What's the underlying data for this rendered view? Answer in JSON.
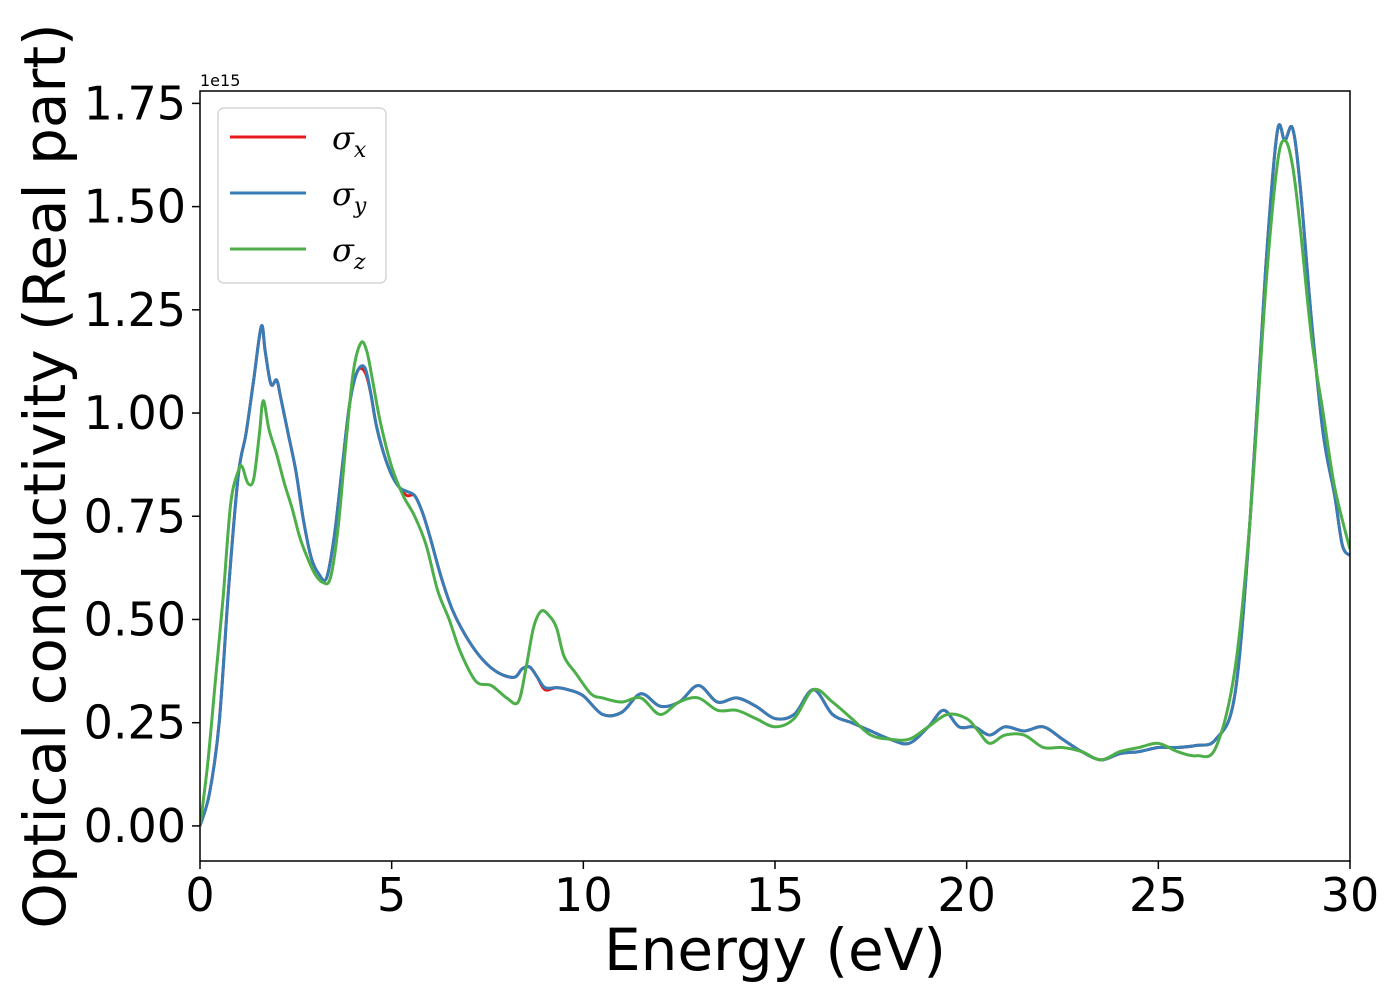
{
  "chart_data": {
    "type": "line",
    "xlabel": "Energy (eV)",
    "ylabel": "Optical conductivity (Real part)",
    "y_offset_label": "1e15",
    "xlim": [
      0,
      30
    ],
    "ylim": [
      -0.085,
      1.78
    ],
    "x_ticks": [
      0,
      5,
      10,
      15,
      20,
      25,
      30
    ],
    "x_tick_labels": [
      "0",
      "5",
      "10",
      "15",
      "20",
      "25",
      "30"
    ],
    "y_ticks": [
      0.0,
      0.25,
      0.5,
      0.75,
      1.0,
      1.25,
      1.5,
      1.75
    ],
    "y_tick_labels": [
      "0.00",
      "0.25",
      "0.50",
      "0.75",
      "1.00",
      "1.25",
      "1.50",
      "1.75"
    ],
    "grid": false,
    "legend_position": "top-left",
    "series": [
      {
        "name": "σx",
        "sub": "x",
        "color": "#e41a1c",
        "x": [
          0,
          0.25,
          0.5,
          0.75,
          1.0,
          1.2,
          1.4,
          1.6,
          1.7,
          1.85,
          2.0,
          2.1,
          2.3,
          2.5,
          2.7,
          2.9,
          3.1,
          3.3,
          3.5,
          3.7,
          3.9,
          4.1,
          4.3,
          4.45,
          4.6,
          4.8,
          5.0,
          5.2,
          5.4,
          5.6,
          5.8,
          6.0,
          6.3,
          6.6,
          7.0,
          7.4,
          7.8,
          8.2,
          8.4,
          8.6,
          8.8,
          9.0,
          9.3,
          9.6,
          10.0,
          10.5,
          11.0,
          11.5,
          12.0,
          12.5,
          13.0,
          13.5,
          14.0,
          14.5,
          15.0,
          15.5,
          16.0,
          16.5,
          17.0,
          17.5,
          18.0,
          18.5,
          19.0,
          19.4,
          19.8,
          20.2,
          20.6,
          21.0,
          21.5,
          22.0,
          22.5,
          23.0,
          23.5,
          24.0,
          24.5,
          25.0,
          25.5,
          26.0,
          26.5,
          27.0,
          27.4,
          27.8,
          28.1,
          28.3,
          28.5,
          28.7,
          29.0,
          29.3,
          29.6,
          29.8,
          30.0
        ],
        "values": [
          0.0,
          0.08,
          0.25,
          0.58,
          0.85,
          0.95,
          1.08,
          1.21,
          1.15,
          1.07,
          1.08,
          1.04,
          0.95,
          0.86,
          0.74,
          0.65,
          0.61,
          0.6,
          0.7,
          0.86,
          1.02,
          1.1,
          1.1,
          1.05,
          0.97,
          0.9,
          0.85,
          0.82,
          0.8,
          0.8,
          0.76,
          0.7,
          0.6,
          0.52,
          0.45,
          0.4,
          0.37,
          0.36,
          0.38,
          0.385,
          0.36,
          0.33,
          0.335,
          0.33,
          0.315,
          0.27,
          0.275,
          0.32,
          0.29,
          0.3,
          0.34,
          0.3,
          0.31,
          0.29,
          0.26,
          0.27,
          0.33,
          0.27,
          0.25,
          0.23,
          0.21,
          0.2,
          0.24,
          0.28,
          0.24,
          0.24,
          0.22,
          0.24,
          0.23,
          0.24,
          0.21,
          0.18,
          0.16,
          0.175,
          0.18,
          0.19,
          0.19,
          0.195,
          0.21,
          0.32,
          0.75,
          1.35,
          1.68,
          1.66,
          1.69,
          1.55,
          1.22,
          0.95,
          0.8,
          0.68,
          0.655
        ]
      },
      {
        "name": "σy",
        "sub": "y",
        "color": "#377eb8",
        "x": [
          0,
          0.25,
          0.5,
          0.75,
          1.0,
          1.2,
          1.4,
          1.6,
          1.7,
          1.85,
          2.0,
          2.1,
          2.3,
          2.5,
          2.7,
          2.9,
          3.1,
          3.3,
          3.5,
          3.7,
          3.9,
          4.1,
          4.3,
          4.45,
          4.6,
          4.8,
          5.0,
          5.2,
          5.4,
          5.6,
          5.8,
          6.0,
          6.3,
          6.6,
          7.0,
          7.4,
          7.8,
          8.2,
          8.4,
          8.6,
          8.8,
          9.0,
          9.3,
          9.6,
          10.0,
          10.5,
          11.0,
          11.5,
          12.0,
          12.5,
          13.0,
          13.5,
          14.0,
          14.5,
          15.0,
          15.5,
          16.0,
          16.5,
          17.0,
          17.5,
          18.0,
          18.5,
          19.0,
          19.4,
          19.8,
          20.2,
          20.6,
          21.0,
          21.5,
          22.0,
          22.5,
          23.0,
          23.5,
          24.0,
          24.5,
          25.0,
          25.5,
          26.0,
          26.5,
          27.0,
          27.4,
          27.8,
          28.1,
          28.3,
          28.5,
          28.7,
          29.0,
          29.3,
          29.6,
          29.8,
          30.0
        ],
        "values": [
          0.0,
          0.08,
          0.25,
          0.58,
          0.85,
          0.95,
          1.08,
          1.21,
          1.15,
          1.07,
          1.08,
          1.04,
          0.95,
          0.86,
          0.74,
          0.65,
          0.61,
          0.6,
          0.7,
          0.86,
          1.02,
          1.1,
          1.11,
          1.05,
          0.97,
          0.9,
          0.85,
          0.82,
          0.81,
          0.8,
          0.76,
          0.7,
          0.6,
          0.52,
          0.45,
          0.4,
          0.37,
          0.36,
          0.38,
          0.385,
          0.36,
          0.335,
          0.335,
          0.33,
          0.315,
          0.27,
          0.275,
          0.32,
          0.29,
          0.3,
          0.34,
          0.3,
          0.31,
          0.29,
          0.26,
          0.27,
          0.33,
          0.27,
          0.25,
          0.23,
          0.21,
          0.2,
          0.24,
          0.28,
          0.24,
          0.24,
          0.22,
          0.24,
          0.23,
          0.24,
          0.21,
          0.18,
          0.16,
          0.175,
          0.18,
          0.19,
          0.19,
          0.195,
          0.21,
          0.32,
          0.75,
          1.35,
          1.68,
          1.66,
          1.69,
          1.55,
          1.22,
          0.95,
          0.8,
          0.68,
          0.655
        ]
      },
      {
        "name": "σz",
        "sub": "z",
        "color": "#4daf4a",
        "x": [
          0,
          0.2,
          0.4,
          0.6,
          0.8,
          1.0,
          1.1,
          1.25,
          1.4,
          1.55,
          1.65,
          1.8,
          2.0,
          2.2,
          2.4,
          2.6,
          2.8,
          3.0,
          3.2,
          3.4,
          3.6,
          3.8,
          4.0,
          4.2,
          4.35,
          4.5,
          4.7,
          5.0,
          5.3,
          5.6,
          5.9,
          6.2,
          6.5,
          6.8,
          7.2,
          7.6,
          8.0,
          8.3,
          8.5,
          8.7,
          8.9,
          9.1,
          9.3,
          9.5,
          9.8,
          10.2,
          10.5,
          11.0,
          11.5,
          12.0,
          12.5,
          13.0,
          13.5,
          14.0,
          14.5,
          15.0,
          15.5,
          16.0,
          16.5,
          17.0,
          17.5,
          18.0,
          18.5,
          19.0,
          19.5,
          20.0,
          20.3,
          20.6,
          21.0,
          21.5,
          22.0,
          22.5,
          23.0,
          23.5,
          24.0,
          24.5,
          25.0,
          25.5,
          26.0,
          26.5,
          27.0,
          27.4,
          27.8,
          28.1,
          28.3,
          28.5,
          28.7,
          29.0,
          29.3,
          29.6,
          30.0
        ],
        "values": [
          0.0,
          0.15,
          0.35,
          0.55,
          0.78,
          0.86,
          0.87,
          0.83,
          0.84,
          0.95,
          1.03,
          0.96,
          0.9,
          0.83,
          0.77,
          0.7,
          0.65,
          0.61,
          0.59,
          0.6,
          0.72,
          0.92,
          1.1,
          1.17,
          1.15,
          1.08,
          0.98,
          0.87,
          0.8,
          0.75,
          0.68,
          0.57,
          0.5,
          0.42,
          0.35,
          0.34,
          0.31,
          0.3,
          0.38,
          0.48,
          0.52,
          0.51,
          0.48,
          0.41,
          0.37,
          0.32,
          0.31,
          0.3,
          0.31,
          0.27,
          0.3,
          0.31,
          0.28,
          0.28,
          0.26,
          0.24,
          0.26,
          0.33,
          0.3,
          0.26,
          0.22,
          0.21,
          0.21,
          0.24,
          0.27,
          0.26,
          0.23,
          0.2,
          0.22,
          0.22,
          0.19,
          0.19,
          0.18,
          0.16,
          0.18,
          0.19,
          0.2,
          0.18,
          0.17,
          0.19,
          0.38,
          0.75,
          1.3,
          1.6,
          1.66,
          1.6,
          1.45,
          1.18,
          1.0,
          0.82,
          0.67
        ]
      }
    ]
  }
}
